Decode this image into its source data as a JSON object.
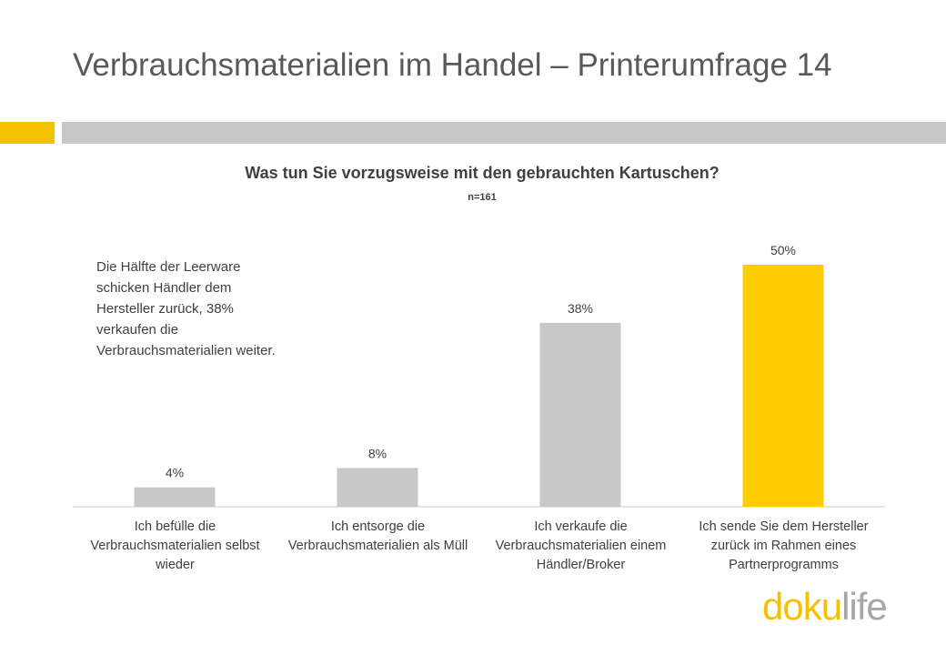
{
  "slide": {
    "title": "Verbrauchsmaterialien im Handel – Printerumfrage 14",
    "accent_color": "#f2c200",
    "bar_color": "#c8c8c8"
  },
  "annotation": "Die Hälfte der Leerware schicken Händler dem Hersteller zurück, 38% verkaufen die Verbrauchsmaterialien weiter.",
  "logo": {
    "part1": "do",
    "part2": "ku",
    "part3": "life"
  },
  "chart_data": {
    "type": "bar",
    "title": "Was tun Sie vorzugsweise mit den gebrauchten Kartuschen?",
    "subtitle": "n=161",
    "categories": [
      "Ich befülle die Verbrauchsmaterialien selbst wieder",
      "Ich entsorge die Verbrauchsmaterialien als Müll",
      "Ich verkaufe die Verbrauchsmaterialien einem Händler/Broker",
      "Ich sende Sie dem Hersteller zurück im Rahmen eines Partnerprogramms"
    ],
    "values": [
      4,
      8,
      38,
      50
    ],
    "data_labels": [
      "4%",
      "8%",
      "38%",
      "50%"
    ],
    "colors": [
      "#c8c8c8",
      "#c8c8c8",
      "#c8c8c8",
      "#ffcc00"
    ],
    "ylim": [
      0,
      50
    ],
    "grid": false,
    "legend": "none"
  }
}
